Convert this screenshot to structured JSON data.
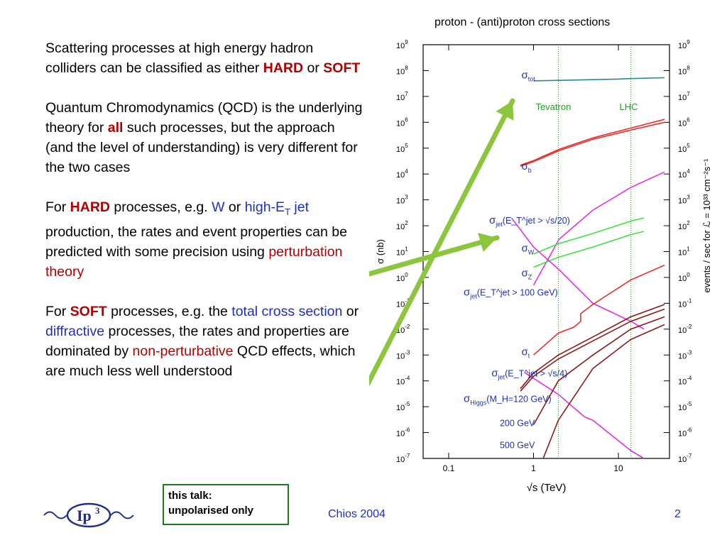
{
  "slide": {
    "p1": {
      "t1": "Scattering processes at high energy hadron colliders can be classified as either ",
      "hard": "HARD",
      "t2": " or ",
      "soft": "SOFT"
    },
    "p2": {
      "t1": "Quantum Chromodynamics (QCD) is the underlying theory for ",
      "all": "all",
      "t2": " such processes, but the approach (and the level of understanding) is very different for the two cases"
    },
    "p3": {
      "t1": "For ",
      "hard": "HARD",
      "t2": " processes, e.g. ",
      "w": "W",
      "t3": " or ",
      "highet": "high-E",
      "sub_t": "T",
      "jet": " jet",
      "t4": " production, the rates and event properties can be predicted with some precision using ",
      "pert": "perturbation theory"
    },
    "p4": {
      "t1": "For ",
      "soft": "SOFT",
      "t2": " processes, e.g. the ",
      "total": "total cross section",
      "t3": " or ",
      "diff": "diffractive",
      "t4": " processes, the rates and properties are dominated by ",
      "nonpert": "non-perturbative",
      "t5": " QCD effects, which are much less well understood"
    },
    "note": {
      "line1": "this talk:",
      "line2": "unpolarised only"
    },
    "footer": "Chios 2004",
    "page": "2",
    "logo_text": "Ip",
    "logo_sup": "3"
  },
  "colors": {
    "red": "#b00000",
    "blue": "#1f2fb8",
    "arrow": "#8cc63f",
    "box": "#1e7a1e"
  },
  "chart_data": {
    "type": "line",
    "title": "proton - (anti)proton cross sections",
    "xlabel": "√s (TeV)",
    "ylabel": "σ (nb)",
    "ylabel_right": "events / sec for ℒ = 10³³ cm⁻²s⁻¹",
    "xscale": "log",
    "yscale": "log",
    "xlim": [
      0.05,
      40
    ],
    "ylim": [
      1e-07,
      1000000000.0
    ],
    "x_ticks": [
      {
        "v": 0.1,
        "label": "0.1"
      },
      {
        "v": 1,
        "label": "1"
      },
      {
        "v": 10,
        "label": "10"
      }
    ],
    "y_ticks": [
      {
        "e": 9,
        "l": "10",
        "s": "9"
      },
      {
        "e": 8,
        "l": "10",
        "s": "8"
      },
      {
        "e": 7,
        "l": "10",
        "s": "7"
      },
      {
        "e": 6,
        "l": "10",
        "s": "6"
      },
      {
        "e": 5,
        "l": "10",
        "s": "5"
      },
      {
        "e": 4,
        "l": "10",
        "s": "4"
      },
      {
        "e": 3,
        "l": "10",
        "s": "3"
      },
      {
        "e": 2,
        "l": "10",
        "s": "2"
      },
      {
        "e": 1,
        "l": "10",
        "s": "1"
      },
      {
        "e": 0,
        "l": "10",
        "s": "0"
      },
      {
        "e": -1,
        "l": "10",
        "s": "-1"
      },
      {
        "e": -2,
        "l": "10",
        "s": "-2"
      },
      {
        "e": -3,
        "l": "10",
        "s": "-3"
      },
      {
        "e": -4,
        "l": "10",
        "s": "-4"
      },
      {
        "e": -5,
        "l": "10",
        "s": "-5"
      },
      {
        "e": -6,
        "l": "10",
        "s": "-6"
      },
      {
        "e": -7,
        "l": "10",
        "s": "-7"
      }
    ],
    "vlines": [
      {
        "x": 1.96,
        "label": "Tevatron"
      },
      {
        "x": 14,
        "label": "LHC"
      }
    ],
    "series": [
      {
        "key": "tot",
        "color": "#2a8a8a",
        "points": [
          [
            1,
            40000000.0
          ],
          [
            3,
            43000000.0
          ],
          [
            10,
            47000000.0
          ],
          [
            14,
            49000000.0
          ],
          [
            35,
            53000000.0
          ]
        ]
      },
      {
        "key": "b",
        "color": "#e8302a",
        "points": [
          [
            0.7,
            20000.0
          ],
          [
            1,
            30000.0
          ],
          [
            2,
            80000.0
          ],
          [
            5,
            220000.0
          ],
          [
            14,
            500000.0
          ],
          [
            35,
            1000000.0
          ]
        ]
      },
      {
        "key": "b2",
        "color": "#e8302a",
        "points": [
          [
            0.7,
            22000.0
          ],
          [
            1,
            33000.0
          ],
          [
            2,
            90000.0
          ],
          [
            5,
            250000.0
          ],
          [
            14,
            600000.0
          ],
          [
            35,
            1300000.0
          ]
        ]
      },
      {
        "key": "jet20",
        "color": "#e030e0",
        "points": [
          [
            1,
            0.5
          ],
          [
            2,
            30
          ],
          [
            5,
            400
          ],
          [
            14,
            3000
          ],
          [
            35,
            12000
          ]
        ]
      },
      {
        "key": "w",
        "color": "#40e040",
        "points": [
          [
            1,
            8
          ],
          [
            1.96,
            20
          ],
          [
            5,
            50
          ],
          [
            14,
            150
          ],
          [
            20,
            200
          ]
        ]
      },
      {
        "key": "z",
        "color": "#40e040",
        "points": [
          [
            1,
            2.5
          ],
          [
            1.96,
            6
          ],
          [
            5,
            15
          ],
          [
            14,
            45
          ],
          [
            20,
            60
          ]
        ]
      },
      {
        "key": "jet100",
        "color": "#e030e0",
        "points": [
          [
            0.55,
            200
          ],
          [
            1,
            15
          ],
          [
            2,
            2
          ],
          [
            5,
            0.1
          ],
          [
            14,
            0.02
          ],
          [
            20,
            0.01
          ]
        ]
      },
      {
        "key": "t",
        "color": "#e8302a",
        "points": [
          [
            1,
            0.001
          ],
          [
            1.96,
            0.007
          ],
          [
            3,
            0.012
          ],
          [
            3.6,
            0.02
          ],
          [
            3.6,
            0.04
          ],
          [
            5,
            0.09
          ],
          [
            14,
            0.8
          ],
          [
            35,
            3
          ]
        ]
      },
      {
        "key": "jet4",
        "color": "#e030e0",
        "points": [
          [
            0.8,
            0.0002
          ],
          [
            1.96,
            3e-05
          ],
          [
            4,
            4e-06
          ],
          [
            5,
            3e-06
          ],
          [
            14,
            2e-07
          ],
          [
            20,
            1e-07
          ]
        ]
      },
      {
        "key": "higgs120",
        "color": "#8b1a1a",
        "points": [
          [
            0.7,
            5e-05
          ],
          [
            1,
            0.0002
          ],
          [
            1.96,
            0.001
          ],
          [
            5,
            0.005
          ],
          [
            14,
            0.03
          ],
          [
            35,
            0.09
          ]
        ]
      },
      {
        "key": "higgs120b",
        "color": "#8b1a1a",
        "points": [
          [
            0.7,
            4e-05
          ],
          [
            1,
            0.00015
          ],
          [
            1.96,
            0.0007
          ],
          [
            5,
            0.0035
          ],
          [
            14,
            0.02
          ],
          [
            35,
            0.06
          ]
        ]
      },
      {
        "key": "higgs200",
        "color": "#8b1a1a",
        "points": [
          [
            1,
            2e-06
          ],
          [
            1.96,
            0.0001
          ],
          [
            5,
            0.001
          ],
          [
            14,
            0.01
          ],
          [
            35,
            0.03
          ]
        ]
      },
      {
        "key": "higgs500",
        "color": "#8b1a1a",
        "points": [
          [
            1.3,
            1e-07
          ],
          [
            1.96,
            3e-06
          ],
          [
            5,
            0.0003
          ],
          [
            14,
            0.004
          ],
          [
            35,
            0.015
          ]
        ]
      }
    ],
    "labels": [
      {
        "sym": "σ",
        "sub": "tot",
        "rest": "",
        "x": 0.72,
        "y": 50000000.0
      },
      {
        "sym": "σ",
        "sub": "b",
        "rest": "",
        "x": 0.72,
        "y": 15000.0
      },
      {
        "sym": "σ",
        "sub": "jet",
        "rest": "(E_T^jet > √s/20)",
        "x": 0.3,
        "y": 120.0
      },
      {
        "sym": "σ",
        "sub": "W",
        "rest": "",
        "x": 0.72,
        "y": 10
      },
      {
        "sym": "σ",
        "sub": "Z",
        "rest": "",
        "x": 0.72,
        "y": 1.1
      },
      {
        "sym": "σ",
        "sub": "jet",
        "rest": "(E_T^jet > 100 GeV)",
        "x": 0.15,
        "y": 0.2
      },
      {
        "sym": "σ",
        "sub": "t",
        "rest": "",
        "x": 0.72,
        "y": 0.001
      },
      {
        "sym": "σ",
        "sub": "jet",
        "rest": "(E_T^jet > √s/4)",
        "x": 0.32,
        "y": 0.00015
      },
      {
        "sym": "σ",
        "sub": "Higgs",
        "rest": "(M_H=120 GeV)",
        "x": 0.15,
        "y": 1.5e-05
      },
      {
        "sym": "",
        "sub": "",
        "rest": "200 GeV",
        "x": 0.4,
        "y": 1.8e-06
      },
      {
        "sym": "",
        "sub": "",
        "rest": "500 GeV",
        "x": 0.4,
        "y": 2.5e-07
      }
    ]
  }
}
